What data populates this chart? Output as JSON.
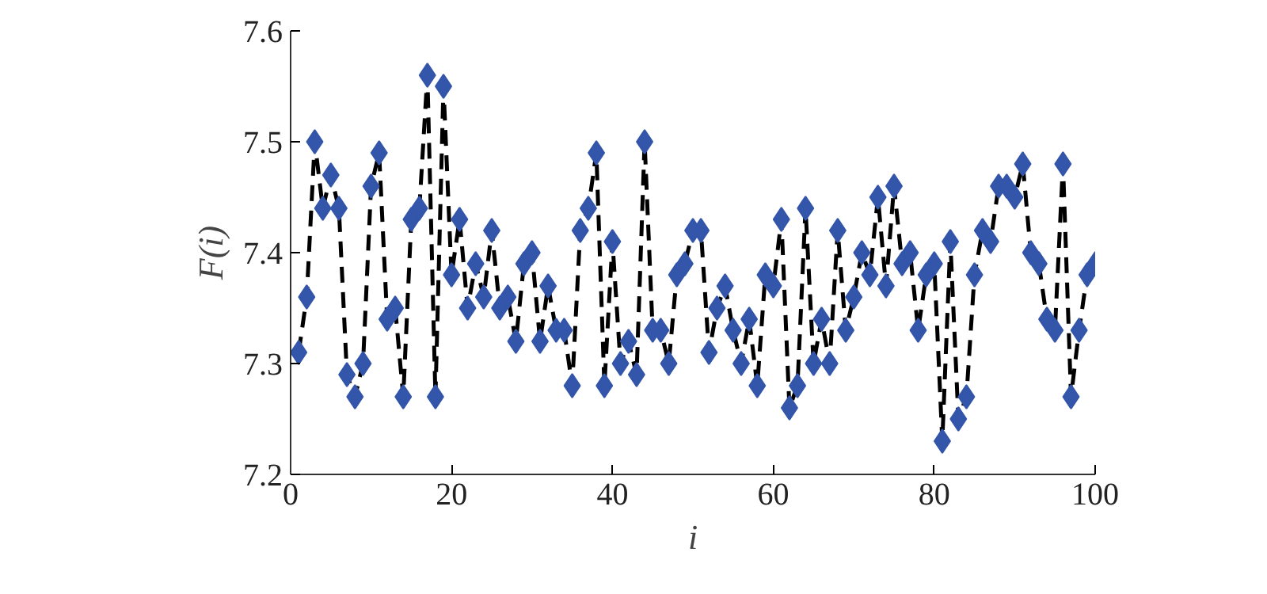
{
  "chart_data": {
    "type": "line",
    "xlabel": "i",
    "ylabel": "F(i)",
    "x": [
      1,
      2,
      3,
      4,
      5,
      6,
      7,
      8,
      9,
      10,
      11,
      12,
      13,
      14,
      15,
      16,
      17,
      18,
      19,
      20,
      21,
      22,
      23,
      24,
      25,
      26,
      27,
      28,
      29,
      30,
      31,
      32,
      33,
      34,
      35,
      36,
      37,
      38,
      39,
      40,
      41,
      42,
      43,
      44,
      45,
      46,
      47,
      48,
      49,
      50,
      51,
      52,
      53,
      54,
      55,
      56,
      57,
      58,
      59,
      60,
      61,
      62,
      63,
      64,
      65,
      66,
      67,
      68,
      69,
      70,
      71,
      72,
      73,
      74,
      75,
      76,
      77,
      78,
      79,
      80,
      81,
      82,
      83,
      84,
      85,
      86,
      87,
      88,
      89,
      90,
      91,
      92,
      93,
      94,
      95,
      96,
      97,
      98,
      99,
      100
    ],
    "series": [
      {
        "color": "#3355aa",
        "values": [
          7.31,
          7.36,
          7.5,
          7.44,
          7.47,
          7.44,
          7.29,
          7.27,
          7.3,
          7.46,
          7.49,
          7.34,
          7.35,
          7.27,
          7.43,
          7.44,
          7.56,
          7.27,
          7.55,
          7.38,
          7.43,
          7.35,
          7.39,
          7.36,
          7.42,
          7.35,
          7.36,
          7.32,
          7.39,
          7.4,
          7.32,
          7.37,
          7.33,
          7.33,
          7.28,
          7.42,
          7.44,
          7.49,
          7.28,
          7.41,
          7.3,
          7.32,
          7.29,
          7.5,
          7.33,
          7.33,
          7.3,
          7.38,
          7.39,
          7.42,
          7.42,
          7.31,
          7.35,
          7.37,
          7.33,
          7.3,
          7.34,
          7.28,
          7.38,
          7.37,
          7.43,
          7.26,
          7.28,
          7.44,
          7.3,
          7.34,
          7.3,
          7.42,
          7.33,
          7.36,
          7.4,
          7.38,
          7.45,
          7.37,
          7.46,
          7.39,
          7.4,
          7.33,
          7.38,
          7.39,
          7.23,
          7.41,
          7.25,
          7.27,
          7.38,
          7.42,
          7.41,
          7.46,
          7.46,
          7.45,
          7.48,
          7.4,
          7.39,
          7.34,
          7.33,
          7.48,
          7.27,
          7.33,
          7.38,
          7.39
        ]
      }
    ],
    "xlim": [
      0,
      100
    ],
    "ylim": [
      7.2,
      7.6
    ],
    "xticks": [
      0,
      20,
      40,
      60,
      80,
      100
    ],
    "yticks": [
      7.2,
      7.3,
      7.4,
      7.5,
      7.6
    ],
    "marker": "diamond",
    "line_style": "dashed",
    "grid": false
  }
}
